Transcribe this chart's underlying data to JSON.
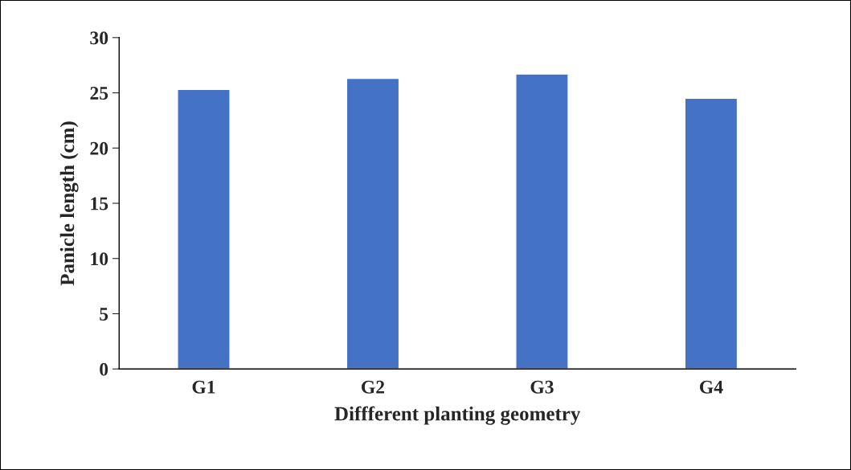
{
  "chart_data": {
    "type": "bar",
    "xlabel": "Diffferent planting geometry",
    "ylabel": "Panicle length (cm)",
    "categories": [
      "G1",
      "G2",
      "G3",
      "G4"
    ],
    "values": [
      25.3,
      26.3,
      26.7,
      24.5
    ],
    "color": "#4472c4",
    "ylim": [
      0,
      30
    ],
    "yticks": [
      0,
      5,
      10,
      15,
      20,
      25,
      30
    ],
    "grid": false,
    "legend": false
  }
}
